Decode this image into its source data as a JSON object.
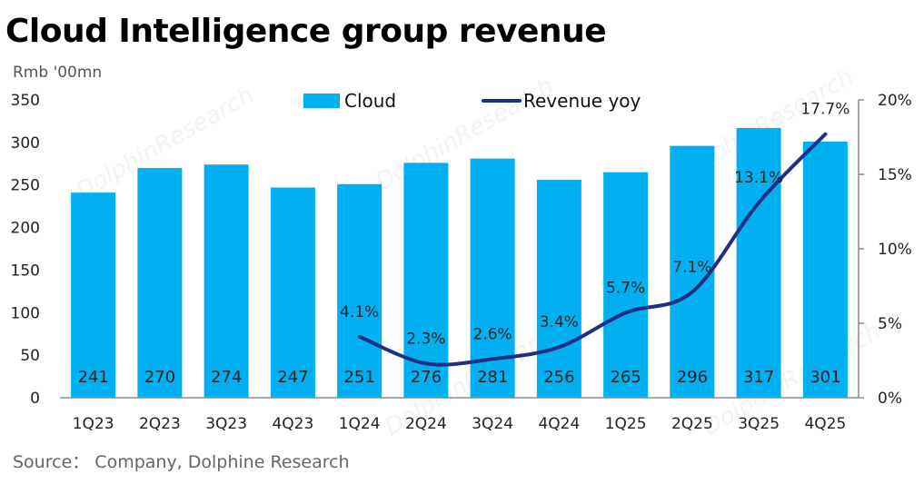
{
  "header": {
    "title": "Cloud Intelligence group revenue",
    "unit": "Rmb '00mn",
    "source": "Source： Company, Dolphine Research"
  },
  "watermark": {
    "text": "DolphinResearch"
  },
  "chart_data": {
    "type": "bar",
    "categories": [
      "1Q23",
      "2Q23",
      "3Q23",
      "4Q23",
      "1Q24",
      "2Q24",
      "3Q24",
      "4Q24",
      "1Q25",
      "2Q25",
      "3Q25",
      "4Q25"
    ],
    "series": [
      {
        "name": "Cloud",
        "type": "bar",
        "axis": "left",
        "color": "#00B0F0",
        "values": [
          241,
          270,
          274,
          247,
          251,
          276,
          281,
          256,
          265,
          296,
          317,
          301
        ],
        "labels": [
          "241",
          "270",
          "274",
          "247",
          "251",
          "276",
          "281",
          "256",
          "265",
          "296",
          "317",
          "301"
        ]
      },
      {
        "name": "Revenue yoy",
        "type": "line",
        "axis": "right",
        "color": "#1F2F86",
        "values": [
          null,
          null,
          null,
          null,
          4.1,
          2.3,
          2.6,
          3.4,
          5.7,
          7.1,
          13.1,
          17.7
        ],
        "labels": [
          "",
          "",
          "",
          "",
          "4.1%",
          "2.3%",
          "2.6%",
          "3.4%",
          "5.7%",
          "7.1%",
          "13.1%",
          "17.7%"
        ]
      }
    ],
    "left_axis": {
      "min": 0,
      "max": 350,
      "ticks": [
        "0",
        "50",
        "100",
        "150",
        "200",
        "250",
        "300",
        "350"
      ]
    },
    "right_axis": {
      "min": 0,
      "max": 20,
      "ticks": [
        "0%",
        "5%",
        "10%",
        "15%",
        "20%"
      ]
    },
    "grid": false,
    "legend": "top-center"
  }
}
